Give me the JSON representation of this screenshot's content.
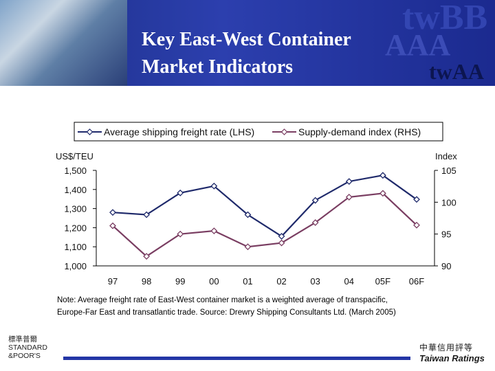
{
  "slide": {
    "title_line1": "Key East-West Container",
    "title_line2": "Market Indicators",
    "watermark": [
      "twBB",
      "AAA",
      "twAA"
    ]
  },
  "chart_data": {
    "type": "line",
    "categories": [
      "97",
      "98",
      "99",
      "00",
      "01",
      "02",
      "03",
      "04",
      "05F",
      "06F"
    ],
    "series": [
      {
        "name": "Average shipping freight rate (LHS)",
        "axis": "left",
        "color": "#1f2a6b",
        "values": [
          1280,
          1268,
          1382,
          1418,
          1268,
          1155,
          1343,
          1442,
          1474,
          1348
        ]
      },
      {
        "name": "Supply-demand index (RHS)",
        "axis": "right",
        "color": "#7a3e62",
        "values": [
          96.3,
          91.5,
          95.0,
          95.5,
          93.0,
          93.6,
          96.8,
          100.8,
          101.4,
          96.4
        ]
      }
    ],
    "ylabel_left": "US$/TEU",
    "ylabel_right": "Index",
    "ylim_left": [
      1000,
      1500
    ],
    "ylim_right": [
      90,
      105
    ],
    "yticks_left": [
      "1,000",
      "1,100",
      "1,200",
      "1,300",
      "1,400",
      "1,500"
    ],
    "yticks_right": [
      "90",
      "95",
      "100",
      "105"
    ],
    "legend_position": "top",
    "grid": false
  },
  "note": {
    "line1": "Note: Average freight rate of East-West container market is a weighted average of transpacific,",
    "line2": "Europe-Far East and transatlantic trade. Source: Drewry Shipping Consultants Ltd. (March 2005)"
  },
  "logos": {
    "sp_chinese": "標準普爾",
    "sp_line1": "STANDARD",
    "sp_line2": "&POOR'S",
    "tr_chinese": "中華信用評等",
    "tr_name": "Taiwan Ratings"
  }
}
